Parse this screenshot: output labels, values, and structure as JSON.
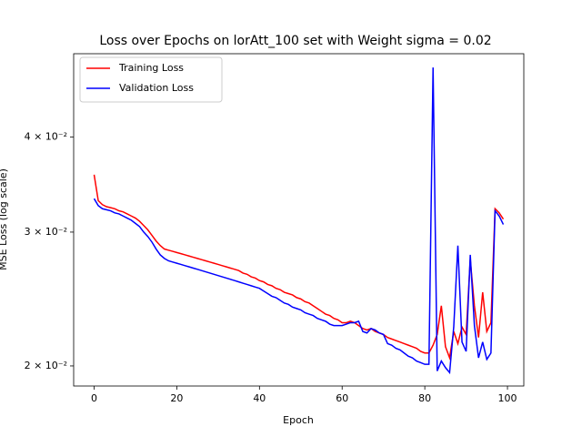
{
  "chart_data": {
    "type": "line",
    "title": "Loss over Epochs on lorAtt_100 set with Weight sigma = 0.02",
    "xlabel": "Epoch",
    "ylabel": "MSE Loss (log scale)",
    "yscale": "log",
    "legend": "upper left",
    "xlim": [
      -4.95,
      103.95
    ],
    "xticks": [
      0,
      20,
      40,
      60,
      80,
      100
    ],
    "ylim": [
      0.01882,
      0.0515
    ],
    "yticks": [
      {
        "value": 0.02,
        "label": "2 × 10⁻²"
      },
      {
        "value": 0.03,
        "label": "3 × 10⁻²"
      },
      {
        "value": 0.04,
        "label": "4 × 10⁻²"
      }
    ],
    "x": [
      0,
      1,
      2,
      3,
      4,
      5,
      6,
      7,
      8,
      9,
      10,
      11,
      12,
      13,
      14,
      15,
      16,
      17,
      18,
      19,
      20,
      21,
      22,
      23,
      24,
      25,
      26,
      27,
      28,
      29,
      30,
      31,
      32,
      33,
      34,
      35,
      36,
      37,
      38,
      39,
      40,
      41,
      42,
      43,
      44,
      45,
      46,
      47,
      48,
      49,
      50,
      51,
      52,
      53,
      54,
      55,
      56,
      57,
      58,
      59,
      60,
      61,
      62,
      63,
      64,
      65,
      66,
      67,
      68,
      69,
      70,
      71,
      72,
      73,
      74,
      75,
      76,
      77,
      78,
      79,
      80,
      81,
      82,
      83,
      84,
      85,
      86,
      87,
      88,
      89,
      90,
      91,
      92,
      93,
      94,
      95,
      96,
      97,
      98,
      99
    ],
    "series": [
      {
        "name": "Training Loss",
        "color": "#ff0000",
        "values": [
          0.0357,
          0.033,
          0.0326,
          0.0324,
          0.0323,
          0.0322,
          0.032,
          0.0319,
          0.0317,
          0.0315,
          0.0313,
          0.031,
          0.0306,
          0.0302,
          0.0297,
          0.0292,
          0.0288,
          0.0285,
          0.0284,
          0.0283,
          0.0282,
          0.0281,
          0.028,
          0.0279,
          0.0278,
          0.0277,
          0.0276,
          0.0275,
          0.0274,
          0.0273,
          0.0272,
          0.0271,
          0.027,
          0.0269,
          0.0268,
          0.0267,
          0.0265,
          0.0264,
          0.0262,
          0.0261,
          0.0259,
          0.0258,
          0.0256,
          0.0255,
          0.0253,
          0.0252,
          0.025,
          0.0249,
          0.0248,
          0.0246,
          0.0245,
          0.0243,
          0.0242,
          0.024,
          0.0238,
          0.0236,
          0.0234,
          0.0233,
          0.0231,
          0.023,
          0.0228,
          0.0228,
          0.0229,
          0.0228,
          0.0226,
          0.0224,
          0.0223,
          0.0224,
          0.0222,
          0.0221,
          0.022,
          0.0218,
          0.0217,
          0.0216,
          0.0215,
          0.0214,
          0.0213,
          0.0212,
          0.0211,
          0.0209,
          0.0208,
          0.0208,
          0.0213,
          0.022,
          0.024,
          0.0212,
          0.0205,
          0.0222,
          0.0214,
          0.0225,
          0.022,
          0.0276,
          0.024,
          0.0218,
          0.025,
          0.0222,
          0.0228,
          0.0322,
          0.0318,
          0.0312
        ]
      },
      {
        "name": "Validation Loss",
        "color": "#0000ff",
        "values": [
          0.0332,
          0.0325,
          0.0322,
          0.0321,
          0.032,
          0.0318,
          0.0317,
          0.0315,
          0.0313,
          0.0311,
          0.0308,
          0.0305,
          0.03,
          0.0296,
          0.0291,
          0.0285,
          0.028,
          0.0277,
          0.0275,
          0.0274,
          0.0273,
          0.0272,
          0.0271,
          0.027,
          0.0269,
          0.0268,
          0.0267,
          0.0266,
          0.0265,
          0.0264,
          0.0263,
          0.0262,
          0.0261,
          0.026,
          0.0259,
          0.0258,
          0.0257,
          0.0256,
          0.0255,
          0.0254,
          0.0253,
          0.0251,
          0.0249,
          0.0247,
          0.0246,
          0.0244,
          0.0242,
          0.0241,
          0.0239,
          0.0238,
          0.0237,
          0.0235,
          0.0234,
          0.0233,
          0.0231,
          0.023,
          0.0229,
          0.0227,
          0.0226,
          0.0226,
          0.0226,
          0.0227,
          0.0228,
          0.0228,
          0.0229,
          0.0222,
          0.0221,
          0.0224,
          0.0223,
          0.0221,
          0.022,
          0.0214,
          0.0213,
          0.0211,
          0.021,
          0.0208,
          0.0206,
          0.0205,
          0.0203,
          0.0202,
          0.0201,
          0.0201,
          0.0494,
          0.0197,
          0.0203,
          0.0199,
          0.0196,
          0.0225,
          0.0288,
          0.0215,
          0.0209,
          0.028,
          0.0226,
          0.0205,
          0.0215,
          0.0204,
          0.0208,
          0.032,
          0.0315,
          0.0307
        ]
      }
    ]
  }
}
